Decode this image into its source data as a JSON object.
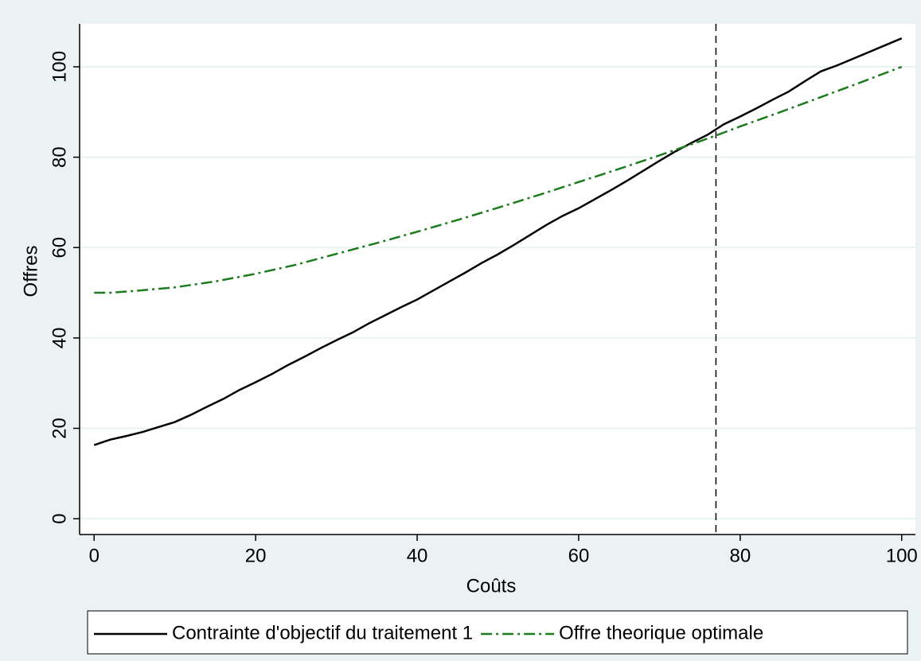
{
  "chart_data": {
    "type": "line",
    "xlabel": "Coûts",
    "ylabel": "Offres",
    "xlim": [
      -1.8,
      101.7
    ],
    "ylim": [
      -3.5,
      109.5
    ],
    "xticks": [
      0,
      20,
      40,
      60,
      80,
      100
    ],
    "yticks": [
      0,
      20,
      40,
      60,
      80,
      100
    ],
    "grid": true,
    "vline": 77,
    "legend": "bottom",
    "series": [
      {
        "name": "Contrainte d'objectif du traitement 1",
        "color": "#000000",
        "dash": "solid",
        "x": [
          0,
          2,
          4,
          6,
          8,
          10,
          12,
          14,
          16,
          18,
          20,
          22,
          24,
          26,
          28,
          30,
          32,
          34,
          36,
          38,
          40,
          42,
          44,
          46,
          48,
          50,
          52,
          54,
          56,
          58,
          60,
          62,
          64,
          66,
          68,
          70,
          72,
          74,
          76,
          78,
          80,
          82,
          84,
          86,
          88,
          90,
          92,
          94,
          96,
          98,
          100
        ],
        "values": [
          16.3,
          17.5,
          18.3,
          19.2,
          20.3,
          21.4,
          23,
          24.8,
          26.5,
          28.5,
          30.2,
          32,
          34,
          35.8,
          37.7,
          39.5,
          41.2,
          43.2,
          45,
          46.8,
          48.5,
          50.5,
          52.5,
          54.5,
          56.6,
          58.5,
          60.6,
          62.8,
          65,
          67,
          68.7,
          70.7,
          72.7,
          74.8,
          77,
          79.2,
          81.3,
          83.2,
          85,
          87.3,
          89,
          90.8,
          92.7,
          94.5,
          96.8,
          99,
          100.3,
          101.8,
          103.3,
          104.8,
          106.3
        ]
      },
      {
        "name": "Offre theorique optimale",
        "color": "#1e7b1e",
        "dash": "dashdot",
        "x": [
          0,
          2,
          5,
          10,
          15,
          20,
          25,
          30,
          35,
          40,
          45,
          50,
          55,
          60,
          65,
          70,
          75,
          77,
          80,
          85,
          90,
          95,
          100
        ],
        "values": [
          50,
          50,
          50.4,
          51.2,
          52.5,
          54.2,
          56.2,
          58.6,
          61,
          63.5,
          66.1,
          68.8,
          71.6,
          74.5,
          77.4,
          80.4,
          83.5,
          84.8,
          86.8,
          90,
          93.3,
          96.6,
          100
        ]
      }
    ]
  }
}
